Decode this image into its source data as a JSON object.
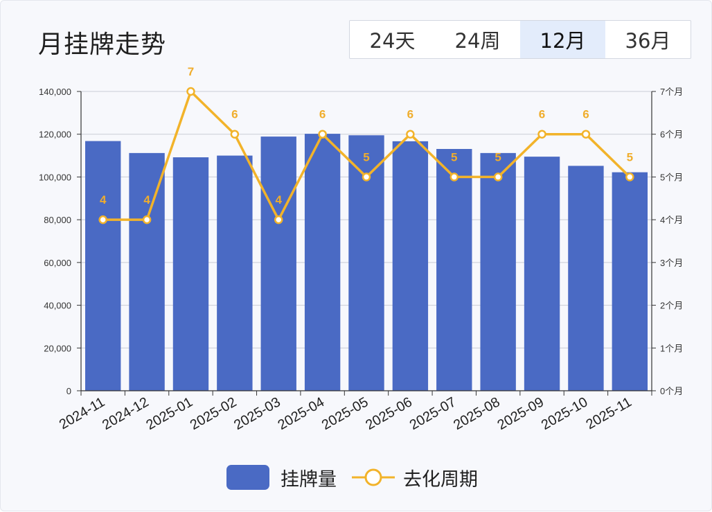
{
  "header": {
    "title": "月挂牌走势",
    "tabs": [
      {
        "label": "24天",
        "active": false
      },
      {
        "label": "24周",
        "active": false
      },
      {
        "label": "12月",
        "active": true
      },
      {
        "label": "36月",
        "active": false
      }
    ]
  },
  "colors": {
    "bar": "#4a6ac4",
    "line": "#f2b32a",
    "line_label": "#f0ad2c",
    "axis": "#333333",
    "grid": "#c9ccd6"
  },
  "chart_data": {
    "type": "bar",
    "categories": [
      "2024-11",
      "2024-12",
      "2025-01",
      "2025-02",
      "2025-03",
      "2025-04",
      "2025-05",
      "2025-06",
      "2025-07",
      "2025-08",
      "2025-09",
      "2025-10",
      "2025-11"
    ],
    "series": [
      {
        "name": "挂牌量",
        "type": "bar",
        "axis": "left",
        "values": [
          116800,
          111200,
          109200,
          110000,
          118900,
          120200,
          119500,
          116700,
          113100,
          111200,
          109500,
          105200,
          102200
        ]
      },
      {
        "name": "去化周期",
        "type": "line",
        "axis": "right",
        "values": [
          4,
          4,
          7,
          6,
          4,
          6,
          5,
          6,
          5,
          5,
          6,
          6,
          5
        ]
      }
    ],
    "y_left": {
      "min": 0,
      "max": 140000,
      "ticks": [
        "0",
        "20,000",
        "40,000",
        "60,000",
        "80,000",
        "100,000",
        "120,000",
        "140,000"
      ]
    },
    "y_right": {
      "min": 0,
      "max": 7,
      "ticks": [
        "0个月",
        "1个月",
        "2个月",
        "3个月",
        "4个月",
        "5个月",
        "6个月",
        "7个月"
      ]
    },
    "grid": true,
    "legend_position": "bottom"
  }
}
